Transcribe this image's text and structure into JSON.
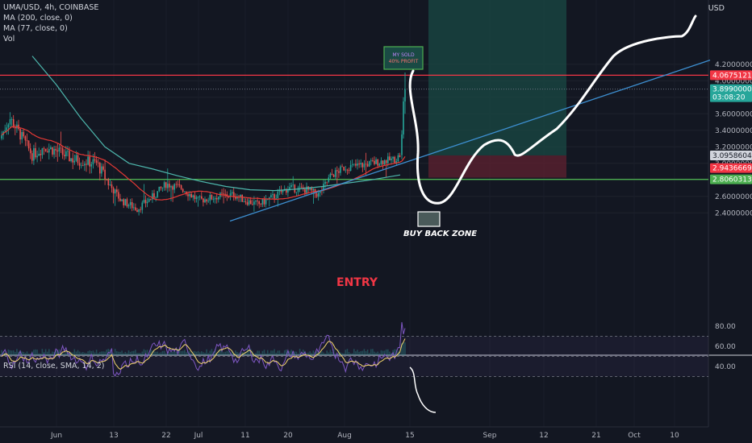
{
  "header": {
    "title": "UMA/USD, 4h, COINBASE",
    "indicators": [
      "MA (200, close, 0)",
      "MA (77, close, 0)",
      "Vol"
    ],
    "currency": "USD"
  },
  "rsi_panel": {
    "title": "RSI (14, close, SMA, 14, 2)"
  },
  "annotations": {
    "sold_box": [
      "MY SOLD",
      "40% PROFIT"
    ],
    "buy_back": "BUY BACK ZONE",
    "entry": "ENTRY"
  },
  "price_axis": {
    "ticks": [
      "4.20000000",
      "4.00000000",
      "3.80000000",
      "3.60000000",
      "3.40000000",
      "3.20000000",
      "3.00000000",
      "2.80000000",
      "2.60000000",
      "2.40000000"
    ],
    "tick_values": [
      4.2,
      4.0,
      3.8,
      3.6,
      3.4,
      3.2,
      3.0,
      2.8,
      2.6,
      2.4
    ],
    "labels": [
      {
        "text": "4.06751214",
        "value": 4.06751214,
        "color": "#f23645"
      },
      {
        "text": "3.89900000",
        "value": 3.899,
        "color": "#26a69a",
        "sub": "03:08:20"
      },
      {
        "text": "3.09586048",
        "value": 3.09586048,
        "color": "#b2b5be"
      },
      {
        "text": "2.94366693",
        "value": 2.94366693,
        "color": "#f23645"
      },
      {
        "text": "2.80603135",
        "value": 2.80603135,
        "color": "#4caf50"
      }
    ]
  },
  "rsi_axis": {
    "ticks": [
      "80.00",
      "60.00",
      "40.00"
    ],
    "tick_values": [
      80,
      60,
      40
    ]
  },
  "time_axis": {
    "labels": [
      "Jun",
      "13",
      "22",
      "Jul",
      "11",
      "20",
      "Aug",
      "15",
      "Sep",
      "12",
      "21",
      "Oct",
      "10"
    ]
  },
  "chart_data": {
    "type": "candlestick",
    "title": "UMA/USD, 4h, COINBASE",
    "y_range": [
      2.3,
      4.35
    ],
    "horizontal_levels": [
      {
        "name": "resistance",
        "value": 4.0675,
        "color": "#f23645"
      },
      {
        "name": "support",
        "value": 2.806,
        "color": "#4caf50"
      }
    ],
    "position": {
      "entry": 3.0959,
      "stop": 2.9437,
      "target": 4.3
    },
    "trendline": {
      "from": 2.3,
      "to": 4.25
    },
    "rsi": {
      "overbought": 70,
      "oversold": 30,
      "range": [
        20,
        90
      ]
    }
  }
}
